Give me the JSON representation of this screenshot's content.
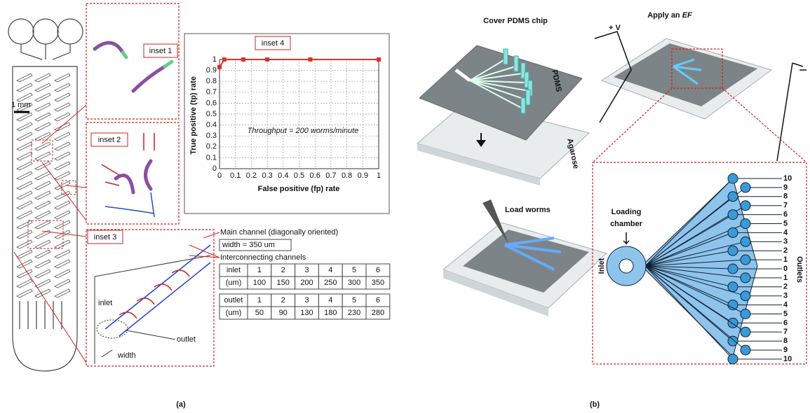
{
  "chart_data": {
    "type": "line",
    "title": "inset 4",
    "xlabel": "False positive (fp) rate",
    "ylabel": "True positive (tp) rate",
    "annotation": "Throughput = 200 worms/minute",
    "x": [
      0,
      0.03,
      0.15,
      0.3,
      0.57,
      1
    ],
    "series": [
      {
        "color": "#e03030",
        "values": [
          0.93,
          1,
          1,
          1,
          1,
          1
        ]
      }
    ],
    "xlim": [
      0,
      1
    ],
    "ylim": [
      0,
      1
    ],
    "xticks": [
      0,
      0.1,
      0.2,
      0.3,
      0.4,
      0.5,
      0.6,
      0.7,
      0.8,
      0.9,
      1
    ],
    "yticks": [
      0,
      0.1,
      0.2,
      0.3,
      0.4,
      0.5,
      0.6,
      0.7,
      0.8,
      0.9,
      1
    ],
    "grid": true
  },
  "panel_a": {
    "label": "(a)",
    "scale_bar": "1 mm",
    "insets": [
      "inset 1",
      "inset 2",
      "inset 3"
    ],
    "main_channel": "Main channel (diagonally oriented)",
    "main_width": "width = 350 um",
    "interconnecting": "Interconnecting channels",
    "inlet_table": [
      [
        "inlet",
        "1",
        "2",
        "3",
        "4",
        "5",
        "6"
      ],
      [
        "(um)",
        "100",
        "150",
        "200",
        "250",
        "300",
        "350"
      ]
    ],
    "outlet_table": [
      [
        "outlet",
        "1",
        "2",
        "3",
        "4",
        "5",
        "6"
      ],
      [
        "(um)",
        "50",
        "90",
        "130",
        "180",
        "230",
        "280"
      ]
    ],
    "inlet_label": "inlet",
    "outlet_label": "outlet",
    "width_label": "width"
  },
  "panel_b": {
    "label": "(b)",
    "step1": "Cover PDMS chip",
    "pdms": "PDMS",
    "agarose": "Agarose",
    "step2_prefix": "Apply an",
    "step2_em": "EF",
    "voltage": "+ V",
    "step3": "Load worms",
    "loading_chamber": [
      "Loading",
      "chamber"
    ],
    "inlet": "Inlet",
    "outlets": "Outlets",
    "outlet_numbers": [
      "10",
      "9",
      "8",
      "7",
      "6",
      "5",
      "4",
      "3",
      "2",
      "1",
      "0",
      "1",
      "2",
      "3",
      "4",
      "5",
      "6",
      "7",
      "8",
      "9",
      "10"
    ]
  }
}
